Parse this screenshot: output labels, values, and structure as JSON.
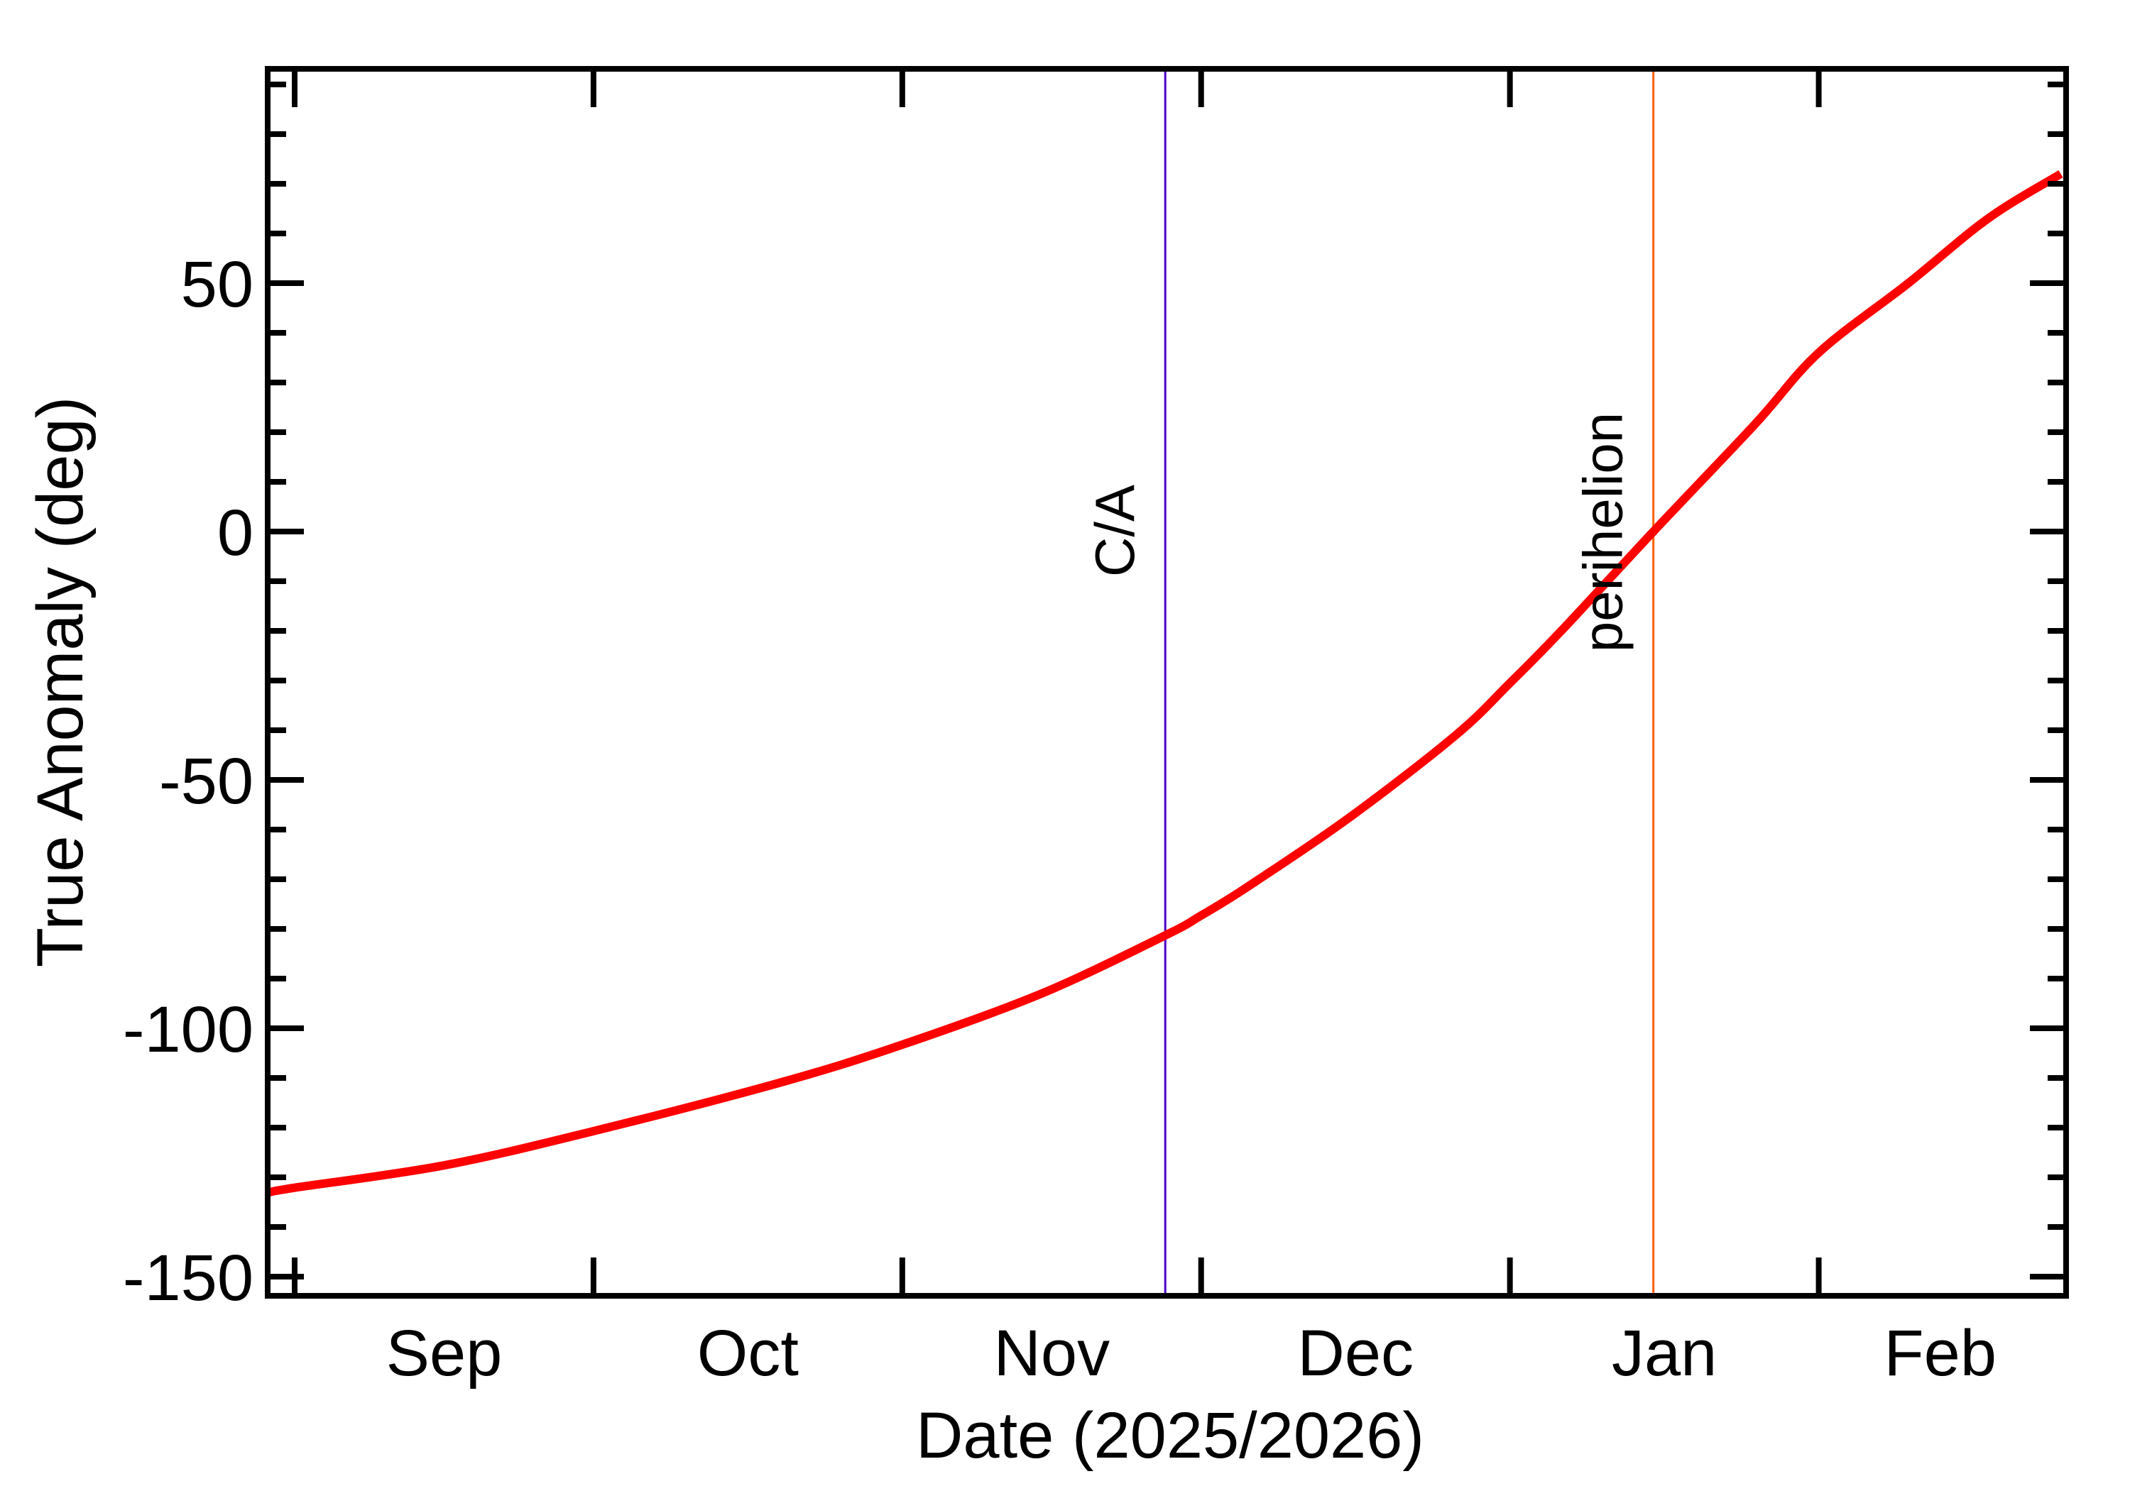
{
  "chart_data": {
    "type": "line",
    "title": "",
    "xlabel": "Date (2025/2026)",
    "ylabel": "True Anomaly (deg)",
    "x_unit": "days since 2025-09-01",
    "xlim_days": [
      -2.7,
      177.3
    ],
    "ylim": [
      -153.8,
      93.1
    ],
    "grid": false,
    "legend": null,
    "x_ticks": [
      {
        "day": 0,
        "label": "Sep"
      },
      {
        "day": 30,
        "label": "Oct"
      },
      {
        "day": 61,
        "label": "Nov"
      },
      {
        "day": 91,
        "label": "Dec"
      },
      {
        "day": 122,
        "label": "Jan"
      },
      {
        "day": 153,
        "label": "Feb"
      }
    ],
    "x_label_positions_days": [
      15,
      45.5,
      76,
      106.5,
      137.5,
      165.2
    ],
    "y_ticks": [
      50,
      0,
      -50,
      -100,
      -150
    ],
    "y_tick_labels": [
      "50",
      "0",
      "-50",
      "-100",
      "-150"
    ],
    "y_minor_step": 10,
    "series": [
      {
        "name": "True Anomaly",
        "color": "#ff0000",
        "points": [
          [
            -2.7,
            -133.1
          ],
          [
            0,
            -132.1
          ],
          [
            15,
            -127.6
          ],
          [
            30,
            -120.7
          ],
          [
            48.8,
            -110.9
          ],
          [
            61,
            -103.3
          ],
          [
            75,
            -93.0
          ],
          [
            87.4,
            -81.3
          ],
          [
            91,
            -77.3
          ],
          [
            95.6,
            -71.6
          ],
          [
            105.8,
            -57.7
          ],
          [
            116.5,
            -41.1
          ],
          [
            122,
            -30.5
          ],
          [
            127.2,
            -19.9
          ],
          [
            136.4,
            0.0
          ],
          [
            146.6,
            21.6
          ],
          [
            153,
            36.0
          ],
          [
            162,
            50.0
          ],
          [
            170,
            63.0
          ],
          [
            177.3,
            72.0
          ]
        ]
      }
    ],
    "annotations": [
      {
        "label": "C/A",
        "day": 87.4,
        "color": "#4b00cc",
        "approx_date": "2025-11-27"
      },
      {
        "label": "perihelion",
        "day": 136.4,
        "color": "#ff6000",
        "approx_date": "2026-01-15"
      }
    ]
  },
  "labels": {
    "xlabel": "Date (2025/2026)",
    "ylabel": "True Anomaly (deg)",
    "months": [
      "Sep",
      "Oct",
      "Nov",
      "Dec",
      "Jan",
      "Feb"
    ],
    "yticks": [
      "50",
      "0",
      "-50",
      "-100",
      "-150"
    ],
    "ca": "C/A",
    "perihelion": "perihelion"
  }
}
